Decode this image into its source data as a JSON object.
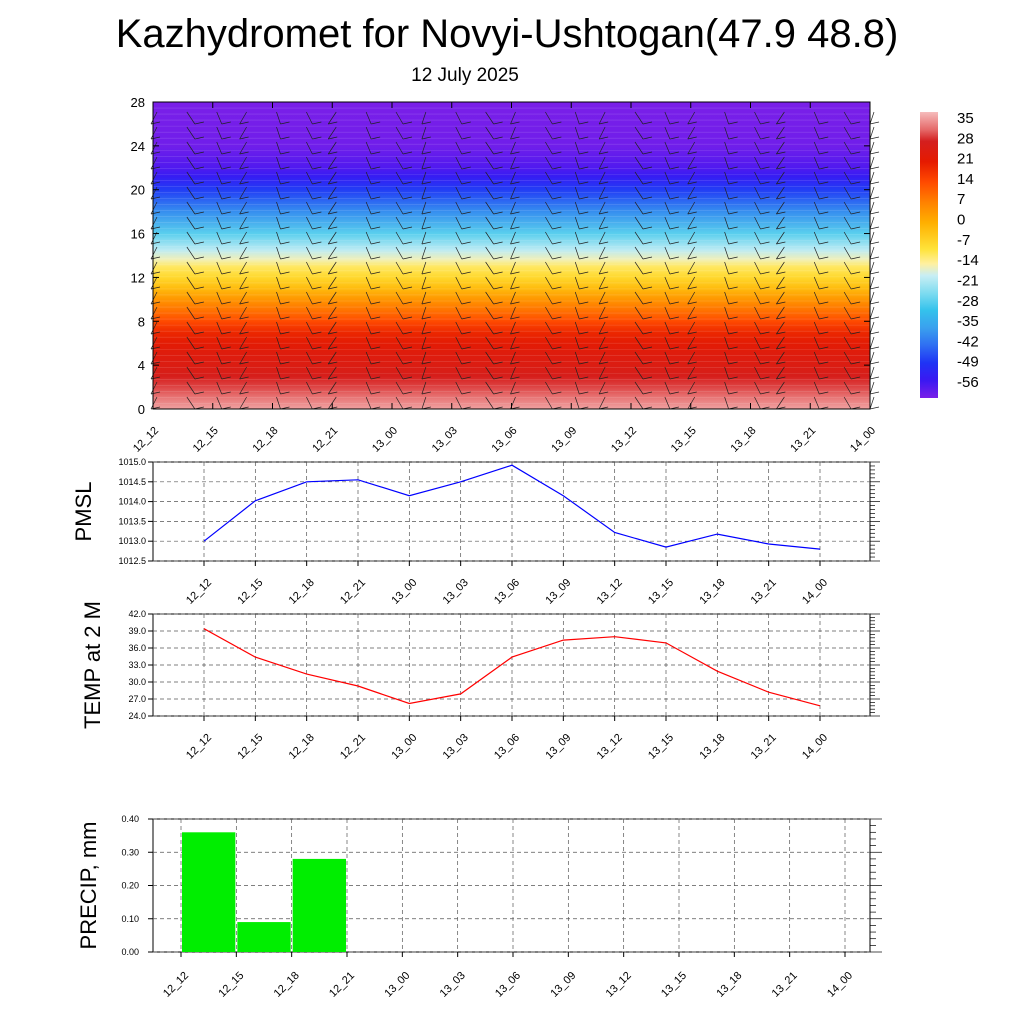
{
  "page": {
    "title": "Kazhydromet for Novyi-Ushtogan(47.9 48.8)",
    "subtitle": "12 July 2025"
  },
  "time_labels": [
    "12_12",
    "12_15",
    "12_18",
    "12_21",
    "13_00",
    "13_03",
    "13_06",
    "13_09",
    "13_12",
    "13_15",
    "13_18",
    "13_21",
    "14_00"
  ],
  "chart_data": [
    {
      "type": "heatmap",
      "name": "temperature-profile-with-wind-barbs",
      "x_labels": [
        "12_12",
        "12_15",
        "12_18",
        "12_21",
        "13_00",
        "13_03",
        "13_06",
        "13_09",
        "13_12",
        "13_15",
        "13_18",
        "13_21",
        "14_00"
      ],
      "yticks": [
        0,
        4,
        8,
        12,
        16,
        20,
        24,
        28
      ],
      "ylim": [
        0,
        28
      ],
      "color_scale": {
        "ticks": [
          35,
          28,
          21,
          14,
          7,
          0,
          -7,
          -14,
          -21,
          -28,
          -35,
          -42,
          -49,
          -56
        ],
        "range": [
          -60,
          38
        ],
        "stops": [
          {
            "v": -60,
            "color": "#7a1fe8"
          },
          {
            "v": -54,
            "color": "#3b18f2"
          },
          {
            "v": -48,
            "color": "#1f33f5"
          },
          {
            "v": -42,
            "color": "#2f6ef2"
          },
          {
            "v": -36,
            "color": "#3aa0ee"
          },
          {
            "v": -30,
            "color": "#34c2ec"
          },
          {
            "v": -24,
            "color": "#7fdcf0"
          },
          {
            "v": -18,
            "color": "#c9eef4"
          },
          {
            "v": -14,
            "color": "#fff0a0"
          },
          {
            "v": -9,
            "color": "#ffe33a"
          },
          {
            "v": 0,
            "color": "#ffb000"
          },
          {
            "v": 7,
            "color": "#ff8200"
          },
          {
            "v": 14,
            "color": "#ff4a00"
          },
          {
            "v": 21,
            "color": "#e51a00"
          },
          {
            "v": 28,
            "color": "#d41f1f"
          },
          {
            "v": 32,
            "color": "#e56a6a"
          },
          {
            "v": 38,
            "color": "#f6bcbc"
          }
        ]
      },
      "profile": [
        {
          "h": 0,
          "t": 36
        },
        {
          "h": 1,
          "t": 33
        },
        {
          "h": 2,
          "t": 30
        },
        {
          "h": 3,
          "t": 27
        },
        {
          "h": 4,
          "t": 25
        },
        {
          "h": 5,
          "t": 24
        },
        {
          "h": 6,
          "t": 22
        },
        {
          "h": 7,
          "t": 19
        },
        {
          "h": 8,
          "t": 14
        },
        {
          "h": 9,
          "t": 9
        },
        {
          "h": 10,
          "t": 4
        },
        {
          "h": 11,
          "t": -2
        },
        {
          "h": 12,
          "t": -7
        },
        {
          "h": 13,
          "t": -11
        },
        {
          "h": 13.6,
          "t": -15
        },
        {
          "h": 14.5,
          "t": -19
        },
        {
          "h": 16,
          "t": -27
        },
        {
          "h": 18,
          "t": -38
        },
        {
          "h": 20,
          "t": -47
        },
        {
          "h": 21.2,
          "t": -53
        },
        {
          "h": 22,
          "t": -56
        },
        {
          "h": 24,
          "t": -59
        },
        {
          "h": 28,
          "t": -60
        }
      ]
    },
    {
      "type": "line",
      "name": "PMSL",
      "ylabel": "PMSL",
      "x": [
        "12_12",
        "12_15",
        "12_18",
        "12_21",
        "13_00",
        "13_03",
        "13_06",
        "13_09",
        "13_12",
        "13_15",
        "13_18",
        "13_21",
        "14_00"
      ],
      "series": [
        {
          "color": "#0000ff",
          "values": [
            1013.0,
            1014.02,
            1014.5,
            1014.55,
            1014.15,
            1014.5,
            1014.92,
            1014.15,
            1013.22,
            1012.85,
            1013.18,
            1012.93,
            1012.8
          ]
        }
      ],
      "ylim": [
        1012.5,
        1015.0
      ],
      "yticks": [
        "1012.5",
        "1013.0",
        "1013.5",
        "1014.0",
        "1014.5",
        "1015.0"
      ],
      "grid": true
    },
    {
      "type": "line",
      "name": "TEMP at 2 M",
      "ylabel": "TEMP at 2 M",
      "x": [
        "12_12",
        "12_15",
        "12_18",
        "12_21",
        "13_00",
        "13_03",
        "13_06",
        "13_09",
        "13_12",
        "13_15",
        "13_18",
        "13_21",
        "14_00"
      ],
      "series": [
        {
          "color": "#ff0000",
          "values": [
            39.4,
            34.4,
            31.4,
            29.3,
            26.2,
            27.9,
            34.4,
            37.4,
            38.0,
            36.9,
            31.9,
            28.2,
            25.8
          ]
        }
      ],
      "ylim": [
        24.0,
        42.0
      ],
      "yticks": [
        "24.0",
        "27.0",
        "30.0",
        "33.0",
        "36.0",
        "39.0",
        "42.0"
      ],
      "grid": true
    },
    {
      "type": "bar",
      "name": "PRECIP, mm",
      "ylabel": "PRECIP, mm",
      "categories": [
        "12_12",
        "12_15",
        "12_18",
        "12_21",
        "13_00",
        "13_03",
        "13_06",
        "13_09",
        "13_12",
        "13_15",
        "13_18",
        "13_21",
        "14_00"
      ],
      "values": [
        0,
        0.36,
        0.09,
        0.28,
        0,
        0,
        0,
        0,
        0,
        0,
        0,
        0,
        0
      ],
      "color": "#00ee00",
      "ylim": [
        0,
        0.4
      ],
      "yticks": [
        "0.00",
        "0.10",
        "0.20",
        "0.30",
        "0.40"
      ],
      "grid": true
    }
  ]
}
